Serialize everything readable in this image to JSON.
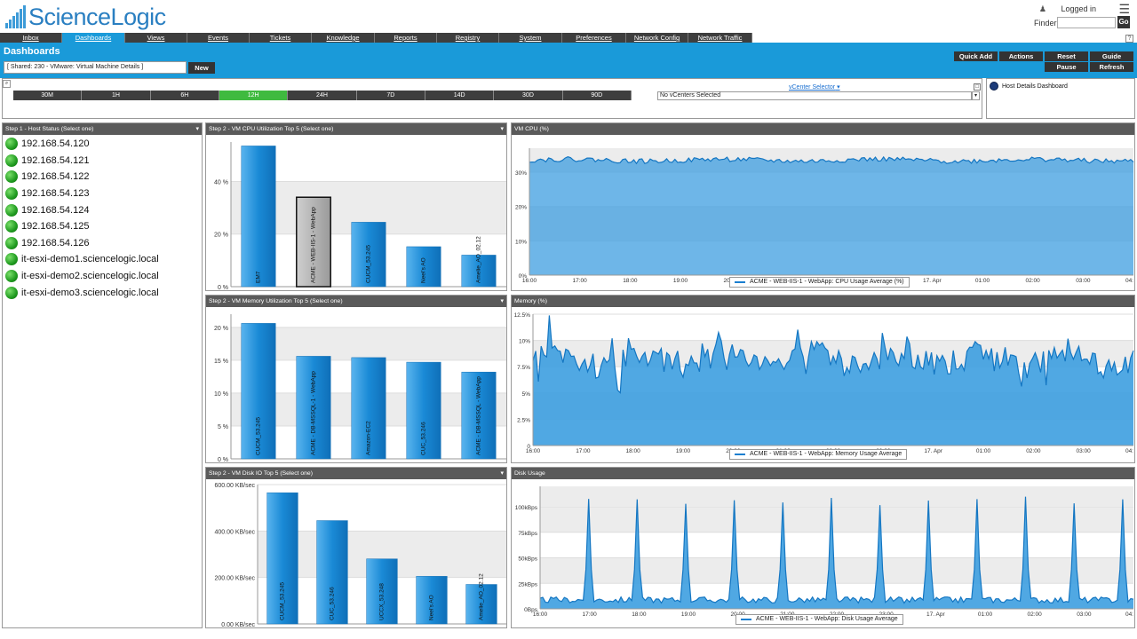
{
  "app": {
    "logo_text": "ScienceLogic",
    "logged_in": "Logged in",
    "finder_label": "Finder",
    "go_label": "Go"
  },
  "nav": {
    "tabs": [
      "Inbox",
      "Dashboards",
      "Views",
      "Events",
      "Tickets",
      "Knowledge",
      "Reports",
      "Registry",
      "System",
      "Preferences",
      "Network Config",
      "Network Traffic"
    ],
    "active": "Dashboards"
  },
  "dashboard": {
    "title": "Dashboards",
    "selected": "[ Shared: 230 - VMware: Virtual Machine Details ]",
    "new_label": "New",
    "buttons": {
      "quick_add": "Quick Add",
      "actions": "Actions",
      "reset": "Reset",
      "guide": "Guide",
      "pause": "Pause",
      "refresh": "Refresh"
    }
  },
  "timebar": {
    "options": [
      "30M",
      "1H",
      "6H",
      "12H",
      "24H",
      "7D",
      "14D",
      "30D",
      "90D"
    ],
    "active": "12H"
  },
  "vcenter": {
    "link": "vCenter Selector",
    "selected": "No vCenters Selected"
  },
  "host_details": {
    "label": "Host Details Dashboard"
  },
  "host_status": {
    "title": "Step 1 - Host Status (Select one)",
    "hosts": [
      "192.168.54.120",
      "192.168.54.121",
      "192.168.54.122",
      "192.168.54.123",
      "192.168.54.124",
      "192.168.54.125",
      "192.168.54.126",
      "it-esxi-demo1.sciencelogic.local",
      "it-esxi-demo2.sciencelogic.local",
      "it-esxi-demo3.sciencelogic.local"
    ],
    "status": "green"
  },
  "colors": {
    "accent": "#1a9ad9",
    "active_time": "#3fba3f",
    "bar": "#2a8fd6",
    "area": "#3d9ee0",
    "nav": "#3e3e3e",
    "header": "#5a5a5a"
  },
  "chart_data": [
    {
      "type": "bar",
      "title": "Step 2 - VM CPU Utilization Top 5 (Select one)",
      "categories": [
        "EM7",
        "ACME - WEB-IIS-1 - WebApp",
        "CUCM_53.245",
        "Neel's AO",
        "Amelie_AO_02.12"
      ],
      "values": [
        53.5,
        34,
        24.5,
        15.2,
        12
      ],
      "selected_index": 1,
      "yticks": [
        "0 %",
        "20 %",
        "40 %"
      ],
      "ylim": [
        0,
        55
      ]
    },
    {
      "type": "area",
      "title": "VM CPU (%)",
      "xticks": [
        "16:00",
        "17:00",
        "18:00",
        "19:00",
        "20:00",
        "21:00",
        "22:00",
        "23:00",
        "17. Apr",
        "01:00",
        "02:00",
        "03:00",
        "04:"
      ],
      "yticks": [
        "0%",
        "10%",
        "20%",
        "30%"
      ],
      "ylim": [
        0,
        37
      ],
      "base_value": 33.5,
      "series": [
        {
          "name": "ACME - WEB-IIS-1 - WebApp: CPU Usage Average (%)"
        }
      ]
    },
    {
      "type": "bar",
      "title": "Step 2 - VM Memory Utilization Top 5 (Select one)",
      "categories": [
        "CUCM_53.245",
        "ACME - DB-MSSQL-1 - WebApp",
        "Amazon-EC2",
        "CUC_53.246",
        "ACME - DB-MSSQL - WebApp"
      ],
      "values": [
        20.6,
        15.6,
        15.4,
        14.7,
        13.2
      ],
      "yticks": [
        "0 %",
        "5 %",
        "10 %",
        "15 %",
        "20 %"
      ],
      "ylim": [
        0,
        22
      ]
    },
    {
      "type": "area",
      "title": "Memory (%)",
      "xticks": [
        "16:00",
        "17:00",
        "18:00",
        "19:00",
        "20:00",
        "21:00",
        "22:00",
        "23:00",
        "17. Apr",
        "01:00",
        "02:00",
        "03:00",
        "04:"
      ],
      "yticks": [
        "0",
        "2.5%",
        "5%",
        "7.5%",
        "10%",
        "12.5%"
      ],
      "ylim": [
        0,
        12.5
      ],
      "base_value": 8.2,
      "series": [
        {
          "name": "ACME - WEB-IIS-1 - WebApp: Memory Usage Average"
        }
      ]
    },
    {
      "type": "bar",
      "title": "Step 2 - VM Disk IO Top 5 (Select one)",
      "categories": [
        "CUCM_53.245",
        "CUC_53.246",
        "UCCX_53.248",
        "Neel's AO",
        "Amelie_AO_02.12"
      ],
      "values": [
        565,
        445,
        280,
        205,
        170
      ],
      "yticks": [
        "0.00 KB/sec",
        "200.00 KB/sec",
        "400.00 KB/sec",
        "600.00 KB/sec"
      ],
      "ylim": [
        0,
        600
      ]
    },
    {
      "type": "area",
      "title": "Disk Usage",
      "xticks": [
        "16:00",
        "17:00",
        "18:00",
        "19:00",
        "20:00",
        "21:00",
        "22:00",
        "23:00",
        "17. Apr",
        "01:00",
        "02:00",
        "03:00",
        "04:"
      ],
      "yticks": [
        "0Bps",
        "25kBps",
        "50kBps",
        "75kBps",
        "100kBps"
      ],
      "ylim": [
        0,
        120
      ],
      "base_value": 8,
      "spike_value": 110,
      "series": [
        {
          "name": "ACME - WEB-IIS-1 - WebApp: Disk Usage Average"
        }
      ]
    }
  ]
}
